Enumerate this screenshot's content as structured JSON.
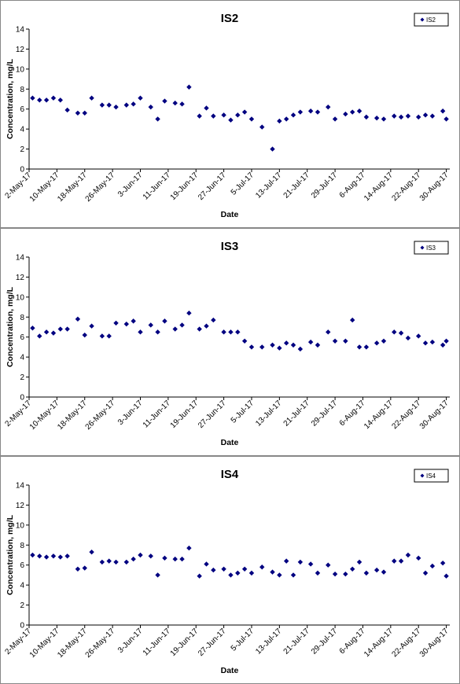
{
  "chart_data": [
    {
      "type": "scatter",
      "title": "IS2",
      "x_label": "Date",
      "y_label": "Concentration, mg/L",
      "x": [
        "2017-05-03",
        "2017-05-05",
        "2017-05-07",
        "2017-05-09",
        "2017-05-11",
        "2017-05-13",
        "2017-05-16",
        "2017-05-18",
        "2017-05-20",
        "2017-05-23",
        "2017-05-25",
        "2017-05-27",
        "2017-05-30",
        "2017-06-01",
        "2017-06-03",
        "2017-06-06",
        "2017-06-08",
        "2017-06-10",
        "2017-06-13",
        "2017-06-15",
        "2017-06-17",
        "2017-06-20",
        "2017-06-22",
        "2017-06-24",
        "2017-06-27",
        "2017-06-29",
        "2017-07-01",
        "2017-07-03",
        "2017-07-05",
        "2017-07-08",
        "2017-07-11",
        "2017-07-13",
        "2017-07-15",
        "2017-07-17",
        "2017-07-19",
        "2017-07-22",
        "2017-07-24",
        "2017-07-27",
        "2017-07-29",
        "2017-08-01",
        "2017-08-03",
        "2017-08-05",
        "2017-08-07",
        "2017-08-10",
        "2017-08-12",
        "2017-08-15",
        "2017-08-17",
        "2017-08-19",
        "2017-08-22",
        "2017-08-24",
        "2017-08-26",
        "2017-08-29",
        "2017-08-30"
      ],
      "series": [
        {
          "name": "IS2",
          "color": "#000080",
          "values": [
            7.1,
            6.9,
            6.9,
            7.1,
            6.9,
            5.9,
            5.6,
            5.6,
            7.1,
            6.4,
            6.4,
            6.2,
            6.4,
            6.5,
            7.1,
            6.2,
            5.0,
            6.8,
            6.6,
            6.5,
            8.2,
            5.3,
            6.1,
            5.3,
            5.4,
            4.9,
            5.4,
            5.7,
            5.0,
            4.2,
            2.0,
            4.8,
            5.0,
            5.4,
            5.7,
            5.8,
            5.7,
            6.2,
            5.0,
            5.5,
            5.7,
            5.8,
            5.2,
            5.1,
            5.0,
            5.3,
            5.2,
            5.3,
            5.2,
            5.4,
            5.3,
            5.8,
            5.0
          ]
        }
      ],
      "xlim": [
        "2017-05-02",
        "2017-08-31"
      ],
      "xticks": [
        {
          "value": "2017-05-02",
          "label": "2-May-17"
        },
        {
          "value": "2017-05-10",
          "label": "10-May-17"
        },
        {
          "value": "2017-05-18",
          "label": "18-May-17"
        },
        {
          "value": "2017-05-26",
          "label": "26-May-17"
        },
        {
          "value": "2017-06-03",
          "label": "3-Jun-17"
        },
        {
          "value": "2017-06-11",
          "label": "11-Jun-17"
        },
        {
          "value": "2017-06-19",
          "label": "19-Jun-17"
        },
        {
          "value": "2017-06-27",
          "label": "27-Jun-17"
        },
        {
          "value": "2017-07-05",
          "label": "5-Jul-17"
        },
        {
          "value": "2017-07-13",
          "label": "13-Jul-17"
        },
        {
          "value": "2017-07-21",
          "label": "21-Jul-17"
        },
        {
          "value": "2017-07-29",
          "label": "29-Jul-17"
        },
        {
          "value": "2017-08-06",
          "label": "6-Aug-17"
        },
        {
          "value": "2017-08-14",
          "label": "14-Aug-17"
        },
        {
          "value": "2017-08-22",
          "label": "22-Aug-17"
        },
        {
          "value": "2017-08-30",
          "label": "30-Aug-17"
        }
      ],
      "ylim": [
        0,
        14
      ],
      "yticks": [
        0,
        2,
        4,
        6,
        8,
        10,
        12,
        14
      ],
      "legend": "top-right"
    },
    {
      "type": "scatter",
      "title": "IS3",
      "x_label": "Date",
      "y_label": "Concentration, mg/L",
      "x": [
        "2017-05-03",
        "2017-05-05",
        "2017-05-07",
        "2017-05-09",
        "2017-05-11",
        "2017-05-13",
        "2017-05-16",
        "2017-05-18",
        "2017-05-20",
        "2017-05-23",
        "2017-05-25",
        "2017-05-27",
        "2017-05-30",
        "2017-06-01",
        "2017-06-03",
        "2017-06-06",
        "2017-06-08",
        "2017-06-10",
        "2017-06-13",
        "2017-06-15",
        "2017-06-17",
        "2017-06-20",
        "2017-06-22",
        "2017-06-24",
        "2017-06-27",
        "2017-06-29",
        "2017-07-01",
        "2017-07-03",
        "2017-07-05",
        "2017-07-08",
        "2017-07-11",
        "2017-07-13",
        "2017-07-15",
        "2017-07-17",
        "2017-07-19",
        "2017-07-22",
        "2017-07-24",
        "2017-07-27",
        "2017-07-29",
        "2017-08-01",
        "2017-08-03",
        "2017-08-05",
        "2017-08-07",
        "2017-08-10",
        "2017-08-12",
        "2017-08-15",
        "2017-08-17",
        "2017-08-19",
        "2017-08-22",
        "2017-08-24",
        "2017-08-26",
        "2017-08-29",
        "2017-08-30"
      ],
      "series": [
        {
          "name": "IS3",
          "color": "#000080",
          "values": [
            6.9,
            6.1,
            6.5,
            6.4,
            6.8,
            6.8,
            7.8,
            6.2,
            7.1,
            6.1,
            6.1,
            7.4,
            7.3,
            7.6,
            6.5,
            7.2,
            6.5,
            7.6,
            6.8,
            7.2,
            8.4,
            6.8,
            7.1,
            7.7,
            6.5,
            6.5,
            6.5,
            5.6,
            5.0,
            5.0,
            5.2,
            4.9,
            5.4,
            5.2,
            4.8,
            5.5,
            5.2,
            6.5,
            5.6,
            5.6,
            7.7,
            5.0,
            5.0,
            5.4,
            5.6,
            6.5,
            6.4,
            5.9,
            6.1,
            5.4,
            5.5,
            5.2,
            5.6
          ]
        }
      ],
      "xlim": [
        "2017-05-02",
        "2017-08-31"
      ],
      "xticks": [
        {
          "value": "2017-05-02",
          "label": "2-May-17"
        },
        {
          "value": "2017-05-10",
          "label": "10-May-17"
        },
        {
          "value": "2017-05-18",
          "label": "18-May-17"
        },
        {
          "value": "2017-05-26",
          "label": "26-May-17"
        },
        {
          "value": "2017-06-03",
          "label": "3-Jun-17"
        },
        {
          "value": "2017-06-11",
          "label": "11-Jun-17"
        },
        {
          "value": "2017-06-19",
          "label": "19-Jun-17"
        },
        {
          "value": "2017-06-27",
          "label": "27-Jun-17"
        },
        {
          "value": "2017-07-05",
          "label": "5-Jul-17"
        },
        {
          "value": "2017-07-13",
          "label": "13-Jul-17"
        },
        {
          "value": "2017-07-21",
          "label": "21-Jul-17"
        },
        {
          "value": "2017-07-29",
          "label": "29-Jul-17"
        },
        {
          "value": "2017-08-06",
          "label": "6-Aug-17"
        },
        {
          "value": "2017-08-14",
          "label": "14-Aug-17"
        },
        {
          "value": "2017-08-22",
          "label": "22-Aug-17"
        },
        {
          "value": "2017-08-30",
          "label": "30-Aug-17"
        }
      ],
      "ylim": [
        0,
        14
      ],
      "yticks": [
        0,
        2,
        4,
        6,
        8,
        10,
        12,
        14
      ],
      "legend": "top-right"
    },
    {
      "type": "scatter",
      "title": "IS4",
      "x_label": "Date",
      "y_label": "Concentration, mg/L",
      "x": [
        "2017-05-03",
        "2017-05-05",
        "2017-05-07",
        "2017-05-09",
        "2017-05-11",
        "2017-05-13",
        "2017-05-16",
        "2017-05-18",
        "2017-05-20",
        "2017-05-23",
        "2017-05-25",
        "2017-05-27",
        "2017-05-30",
        "2017-06-01",
        "2017-06-03",
        "2017-06-06",
        "2017-06-08",
        "2017-06-10",
        "2017-06-13",
        "2017-06-15",
        "2017-06-17",
        "2017-06-20",
        "2017-06-22",
        "2017-06-24",
        "2017-06-27",
        "2017-06-29",
        "2017-07-01",
        "2017-07-03",
        "2017-07-05",
        "2017-07-08",
        "2017-07-11",
        "2017-07-13",
        "2017-07-15",
        "2017-07-17",
        "2017-07-19",
        "2017-07-22",
        "2017-07-24",
        "2017-07-27",
        "2017-07-29",
        "2017-08-01",
        "2017-08-03",
        "2017-08-05",
        "2017-08-07",
        "2017-08-10",
        "2017-08-12",
        "2017-08-15",
        "2017-08-17",
        "2017-08-19",
        "2017-08-22",
        "2017-08-24",
        "2017-08-26",
        "2017-08-29",
        "2017-08-30"
      ],
      "series": [
        {
          "name": "IS4",
          "color": "#000080",
          "values": [
            7.0,
            6.9,
            6.8,
            6.9,
            6.8,
            6.9,
            5.6,
            5.7,
            7.3,
            6.3,
            6.4,
            6.3,
            6.3,
            6.6,
            7.0,
            6.9,
            5.0,
            6.7,
            6.6,
            6.6,
            7.7,
            4.9,
            6.1,
            5.5,
            5.6,
            5.0,
            5.2,
            5.6,
            5.2,
            5.8,
            5.3,
            5.0,
            6.4,
            5.0,
            6.3,
            6.1,
            5.2,
            6.0,
            5.1,
            5.1,
            5.6,
            6.3,
            5.2,
            5.5,
            5.3,
            6.4,
            6.4,
            7.0,
            6.7,
            5.2,
            5.9,
            6.2,
            4.9
          ]
        }
      ],
      "xlim": [
        "2017-05-02",
        "2017-08-31"
      ],
      "xticks": [
        {
          "value": "2017-05-02",
          "label": "2-May-17"
        },
        {
          "value": "2017-05-10",
          "label": "10-May-17"
        },
        {
          "value": "2017-05-18",
          "label": "18-May-17"
        },
        {
          "value": "2017-05-26",
          "label": "26-May-17"
        },
        {
          "value": "2017-06-03",
          "label": "3-Jun-17"
        },
        {
          "value": "2017-06-11",
          "label": "11-Jun-17"
        },
        {
          "value": "2017-06-19",
          "label": "19-Jun-17"
        },
        {
          "value": "2017-06-27",
          "label": "27-Jun-17"
        },
        {
          "value": "2017-07-05",
          "label": "5-Jul-17"
        },
        {
          "value": "2017-07-13",
          "label": "13-Jul-17"
        },
        {
          "value": "2017-07-21",
          "label": "21-Jul-17"
        },
        {
          "value": "2017-07-29",
          "label": "29-Jul-17"
        },
        {
          "value": "2017-08-06",
          "label": "6-Aug-17"
        },
        {
          "value": "2017-08-14",
          "label": "14-Aug-17"
        },
        {
          "value": "2017-08-22",
          "label": "22-Aug-17"
        },
        {
          "value": "2017-08-30",
          "label": "30-Aug-17"
        }
      ],
      "ylim": [
        0,
        14
      ],
      "yticks": [
        0,
        2,
        4,
        6,
        8,
        10,
        12,
        14
      ],
      "legend": "top-right"
    }
  ]
}
